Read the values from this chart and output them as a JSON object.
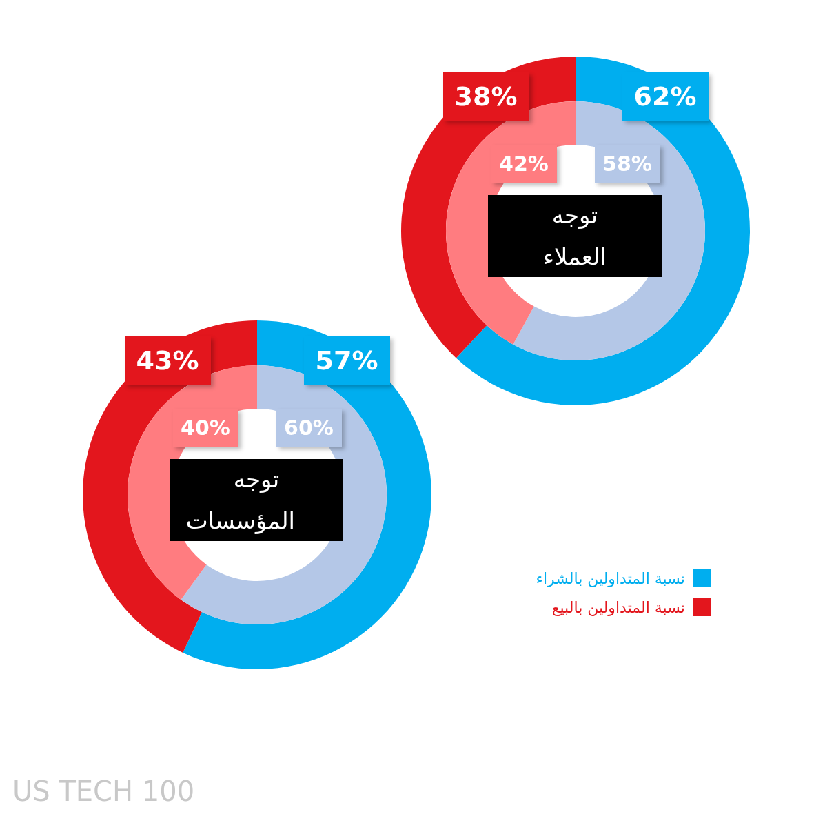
{
  "chart_data": [
    {
      "type": "donut",
      "title": "توجه العملاء",
      "series": [
        {
          "values": [
            62,
            38
          ],
          "colors": [
            "#00aeef",
            "#e3161d"
          ],
          "value_labels": [
            "62%",
            "38%"
          ]
        },
        {
          "values": [
            58,
            42
          ],
          "colors": [
            "#b4c7e7",
            "#ff7c80"
          ],
          "value_labels": [
            "58%",
            "42%"
          ]
        }
      ]
    },
    {
      "type": "donut",
      "title": "توجه المؤسسات",
      "categories": [
        "نسبة المتداولين بالشراء",
        "نسبة المتداولين بالبيع"
      ],
      "legend": "right",
      "series": [
        {
          "values": [
            57,
            43
          ],
          "colors": [
            "#00aeef",
            "#e3161d"
          ],
          "value_labels": [
            "57%",
            "43%"
          ]
        },
        {
          "values": [
            60,
            40
          ],
          "colors": [
            "#b4c7e7",
            "#ff7c80"
          ],
          "value_labels": [
            "60%",
            "40%"
          ]
        }
      ],
      "annotations": [
        "US TECH 100"
      ]
    }
  ]
}
